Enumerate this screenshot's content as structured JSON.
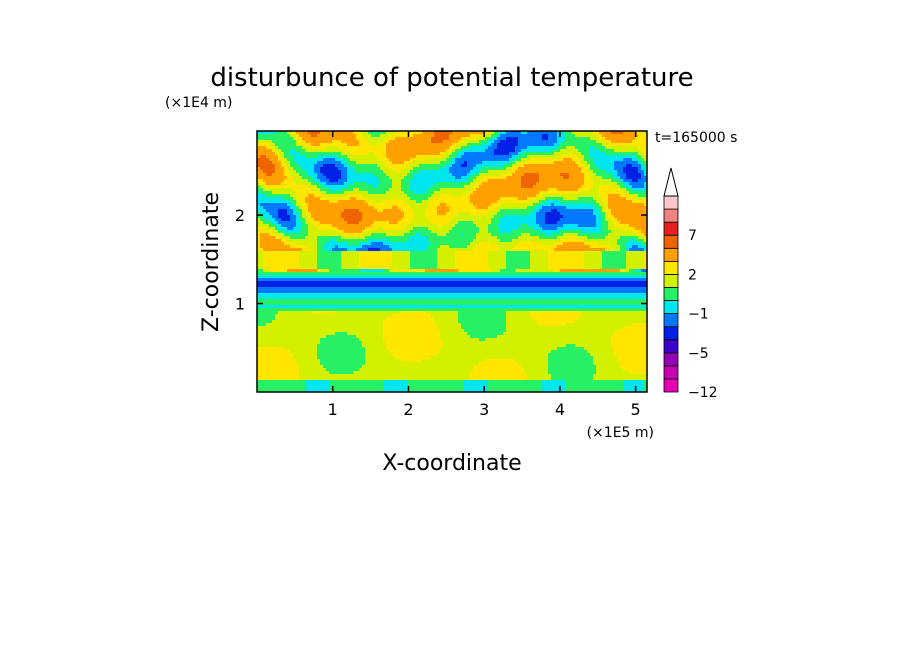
{
  "chart_data": {
    "type": "heatmap",
    "title": "disturbunce of potential temperature",
    "xlabel": "X-coordinate",
    "ylabel": "Z-coordinate",
    "x_unit": "(×1E5 m)",
    "y_unit": "(×1E4 m)",
    "time_label": "t=165000 s",
    "xlim": [
      0,
      5.15
    ],
    "ylim": [
      0,
      2.95
    ],
    "x_ticks": [
      1,
      2,
      3,
      4,
      5
    ],
    "y_ticks": [
      1,
      2
    ],
    "colorbar": {
      "levels": [
        {
          "value": -12,
          "color": "#e600b4"
        },
        {
          "value": -9,
          "color": "#c800b4"
        },
        {
          "value": -7,
          "color": "#9600b4"
        },
        {
          "value": -5,
          "color": "#3c00c8"
        },
        {
          "value": -3,
          "color": "#0020e6"
        },
        {
          "value": -2,
          "color": "#0078ff"
        },
        {
          "value": -1,
          "color": "#00e6f0"
        },
        {
          "value": 0,
          "color": "#28f064"
        },
        {
          "value": 1,
          "color": "#d2f000"
        },
        {
          "value": 2,
          "color": "#ffe600"
        },
        {
          "value": 3,
          "color": "#ffa000"
        },
        {
          "value": 5,
          "color": "#f06400"
        },
        {
          "value": 7,
          "color": "#e61e1e"
        },
        {
          "value": 9,
          "color": "#f08282"
        },
        {
          "value": 12,
          "color": "#fac8c8"
        }
      ],
      "tick_labels": [
        "-12",
        "-5",
        "-1",
        "2",
        "7"
      ]
    }
  }
}
